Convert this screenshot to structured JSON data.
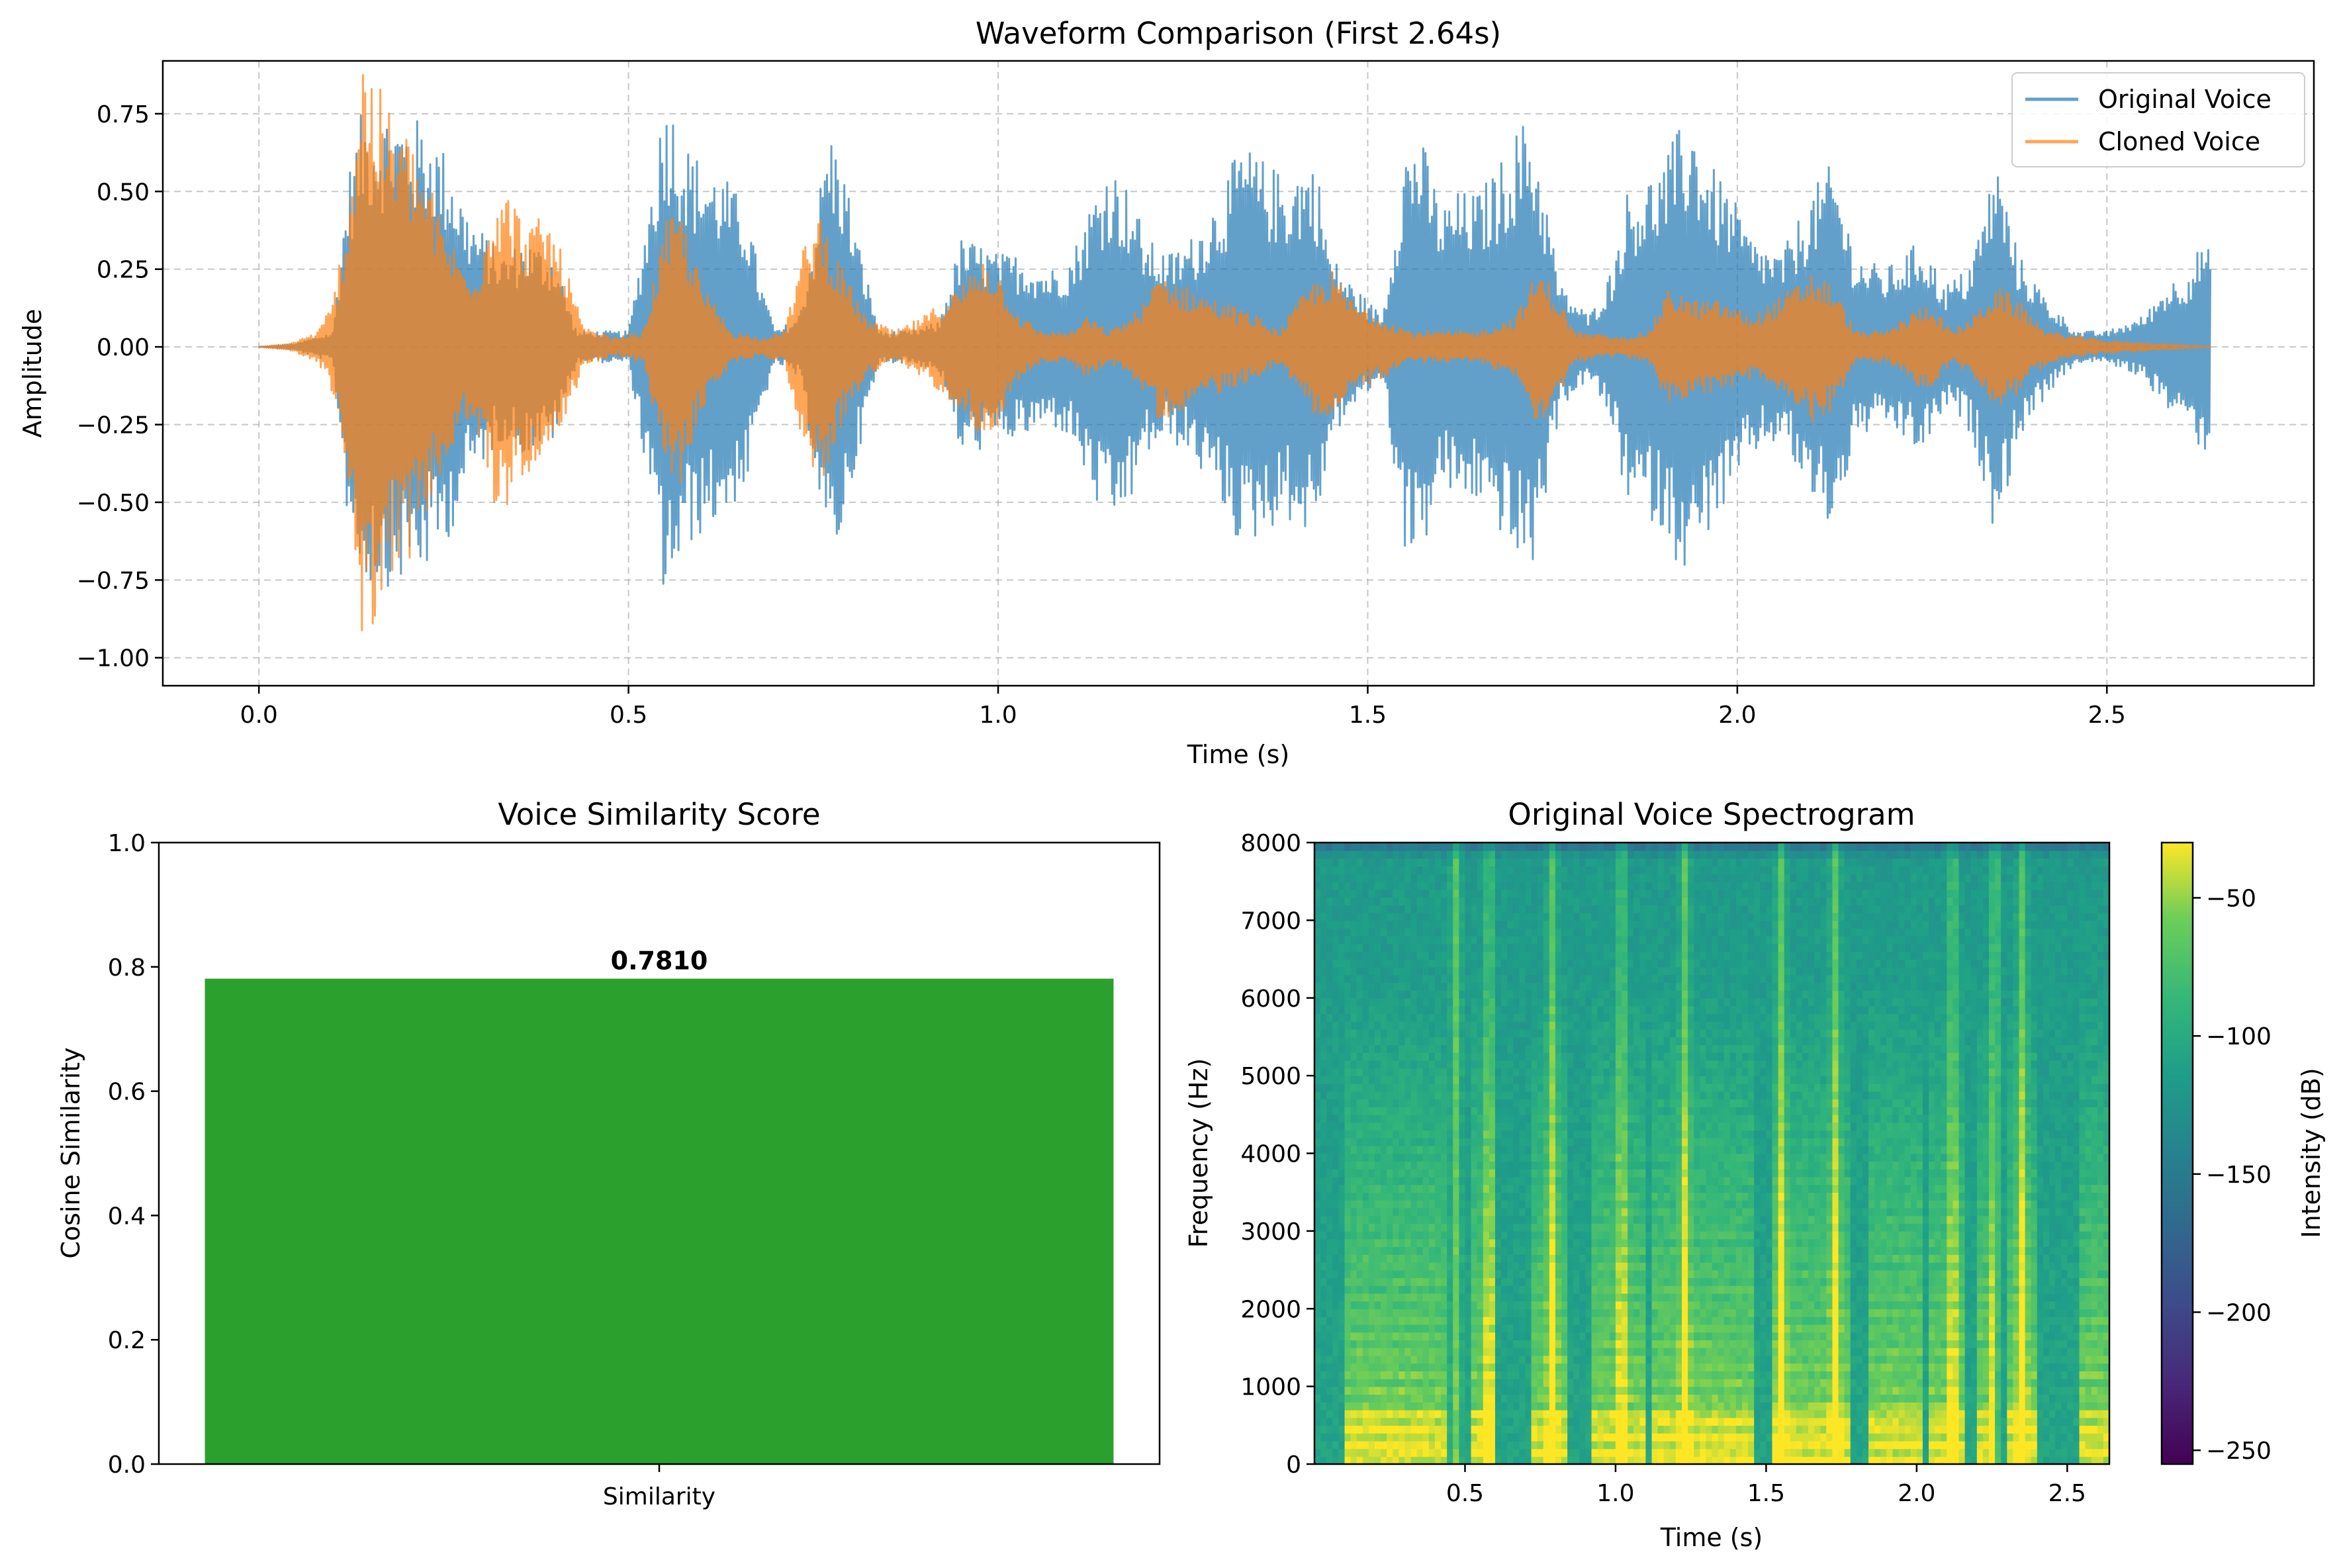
{
  "chart_data": [
    {
      "type": "line",
      "title": "Waveform Comparison (First 2.64s)",
      "xlabel": "Time (s)",
      "ylabel": "Amplitude",
      "xlim": [
        -0.13,
        2.78
      ],
      "ylim": [
        -1.09,
        0.92
      ],
      "xticks": [
        "0.0",
        "0.5",
        "1.0",
        "1.5",
        "2.0",
        "2.5"
      ],
      "yticks": [
        "0.75",
        "0.50",
        "0.25",
        "0.00",
        "−0.25",
        "−0.50",
        "−0.75",
        "−1.00"
      ],
      "grid": true,
      "legend_position": "top-right",
      "duration_s": 2.64,
      "series": [
        {
          "name": "Original Voice",
          "color": "#1f77b4",
          "envelope": [
            [
              0.0,
              0.0
            ],
            [
              0.05,
              0.01
            ],
            [
              0.1,
              0.05
            ],
            [
              0.12,
              0.55
            ],
            [
              0.14,
              0.77
            ],
            [
              0.18,
              0.77
            ],
            [
              0.2,
              0.75
            ],
            [
              0.23,
              0.72
            ],
            [
              0.26,
              0.6
            ],
            [
              0.28,
              0.45
            ],
            [
              0.3,
              0.38
            ],
            [
              0.33,
              0.3
            ],
            [
              0.36,
              0.35
            ],
            [
              0.4,
              0.3
            ],
            [
              0.43,
              0.05
            ],
            [
              0.47,
              0.05
            ],
            [
              0.5,
              0.05
            ],
            [
              0.52,
              0.35
            ],
            [
              0.55,
              0.84
            ],
            [
              0.58,
              0.65
            ],
            [
              0.6,
              0.6
            ],
            [
              0.63,
              0.55
            ],
            [
              0.66,
              0.45
            ],
            [
              0.68,
              0.2
            ],
            [
              0.7,
              0.05
            ],
            [
              0.73,
              0.1
            ],
            [
              0.75,
              0.35
            ],
            [
              0.77,
              0.72
            ],
            [
              0.79,
              0.6
            ],
            [
              0.81,
              0.35
            ],
            [
              0.84,
              0.05
            ],
            [
              0.88,
              0.05
            ],
            [
              0.92,
              0.08
            ],
            [
              0.95,
              0.35
            ],
            [
              0.98,
              0.33
            ],
            [
              1.0,
              0.3
            ],
            [
              1.03,
              0.3
            ],
            [
              1.07,
              0.25
            ],
            [
              1.1,
              0.3
            ],
            [
              1.13,
              0.5
            ],
            [
              1.15,
              0.6
            ],
            [
              1.18,
              0.5
            ],
            [
              1.2,
              0.35
            ],
            [
              1.23,
              0.3
            ],
            [
              1.26,
              0.35
            ],
            [
              1.3,
              0.5
            ],
            [
              1.33,
              0.66
            ],
            [
              1.36,
              0.6
            ],
            [
              1.39,
              0.55
            ],
            [
              1.41,
              0.6
            ],
            [
              1.43,
              0.6
            ],
            [
              1.45,
              0.3
            ],
            [
              1.48,
              0.2
            ],
            [
              1.52,
              0.1
            ],
            [
              1.55,
              0.65
            ],
            [
              1.57,
              0.7
            ],
            [
              1.6,
              0.45
            ],
            [
              1.62,
              0.5
            ],
            [
              1.65,
              0.5
            ],
            [
              1.68,
              0.6
            ],
            [
              1.7,
              0.7
            ],
            [
              1.72,
              0.75
            ],
            [
              1.74,
              0.5
            ],
            [
              1.76,
              0.2
            ],
            [
              1.8,
              0.1
            ],
            [
              1.83,
              0.25
            ],
            [
              1.85,
              0.5
            ],
            [
              1.88,
              0.55
            ],
            [
              1.9,
              0.6
            ],
            [
              1.92,
              0.7
            ],
            [
              1.94,
              0.74
            ],
            [
              1.96,
              0.6
            ],
            [
              1.99,
              0.5
            ],
            [
              2.02,
              0.35
            ],
            [
              2.06,
              0.3
            ],
            [
              2.1,
              0.5
            ],
            [
              2.13,
              0.6
            ],
            [
              2.16,
              0.3
            ],
            [
              2.2,
              0.25
            ],
            [
              2.25,
              0.35
            ],
            [
              2.28,
              0.2
            ],
            [
              2.31,
              0.25
            ],
            [
              2.33,
              0.4
            ],
            [
              2.35,
              0.62
            ],
            [
              2.38,
              0.3
            ],
            [
              2.42,
              0.15
            ],
            [
              2.46,
              0.05
            ],
            [
              2.5,
              0.05
            ],
            [
              2.55,
              0.1
            ],
            [
              2.58,
              0.2
            ],
            [
              2.61,
              0.25
            ],
            [
              2.63,
              0.35
            ],
            [
              2.64,
              0.3
            ]
          ]
        },
        {
          "name": "Cloned Voice",
          "color": "#ff7f0e",
          "envelope": [
            [
              0.0,
              0.0
            ],
            [
              0.04,
              0.01
            ],
            [
              0.08,
              0.05
            ],
            [
              0.1,
              0.15
            ],
            [
              0.12,
              0.45
            ],
            [
              0.14,
              1.0
            ],
            [
              0.16,
              0.85
            ],
            [
              0.18,
              0.75
            ],
            [
              0.2,
              0.7
            ],
            [
              0.22,
              0.6
            ],
            [
              0.25,
              0.4
            ],
            [
              0.28,
              0.25
            ],
            [
              0.3,
              0.3
            ],
            [
              0.32,
              0.55
            ],
            [
              0.34,
              0.5
            ],
            [
              0.36,
              0.4
            ],
            [
              0.39,
              0.42
            ],
            [
              0.41,
              0.3
            ],
            [
              0.44,
              0.06
            ],
            [
              0.48,
              0.03
            ],
            [
              0.52,
              0.05
            ],
            [
              0.55,
              0.4
            ],
            [
              0.57,
              0.45
            ],
            [
              0.6,
              0.2
            ],
            [
              0.64,
              0.05
            ],
            [
              0.68,
              0.03
            ],
            [
              0.71,
              0.05
            ],
            [
              0.74,
              0.35
            ],
            [
              0.76,
              0.45
            ],
            [
              0.78,
              0.3
            ],
            [
              0.82,
              0.1
            ],
            [
              0.86,
              0.05
            ],
            [
              0.9,
              0.1
            ],
            [
              0.95,
              0.2
            ],
            [
              0.98,
              0.3
            ],
            [
              1.0,
              0.25
            ],
            [
              1.03,
              0.1
            ],
            [
              1.06,
              0.05
            ],
            [
              1.1,
              0.05
            ],
            [
              1.12,
              0.1
            ],
            [
              1.15,
              0.05
            ],
            [
              1.18,
              0.1
            ],
            [
              1.2,
              0.15
            ],
            [
              1.22,
              0.25
            ],
            [
              1.25,
              0.2
            ],
            [
              1.3,
              0.15
            ],
            [
              1.35,
              0.1
            ],
            [
              1.38,
              0.05
            ],
            [
              1.42,
              0.2
            ],
            [
              1.45,
              0.25
            ],
            [
              1.48,
              0.15
            ],
            [
              1.52,
              0.1
            ],
            [
              1.56,
              0.05
            ],
            [
              1.6,
              0.05
            ],
            [
              1.65,
              0.05
            ],
            [
              1.7,
              0.1
            ],
            [
              1.73,
              0.25
            ],
            [
              1.75,
              0.2
            ],
            [
              1.78,
              0.05
            ],
            [
              1.84,
              0.03
            ],
            [
              1.88,
              0.05
            ],
            [
              1.91,
              0.2
            ],
            [
              1.94,
              0.15
            ],
            [
              1.98,
              0.15
            ],
            [
              2.02,
              0.1
            ],
            [
              2.05,
              0.15
            ],
            [
              2.08,
              0.2
            ],
            [
              2.1,
              0.25
            ],
            [
              2.13,
              0.2
            ],
            [
              2.16,
              0.05
            ],
            [
              2.2,
              0.05
            ],
            [
              2.23,
              0.1
            ],
            [
              2.26,
              0.15
            ],
            [
              2.29,
              0.05
            ],
            [
              2.32,
              0.1
            ],
            [
              2.35,
              0.2
            ],
            [
              2.38,
              0.15
            ],
            [
              2.42,
              0.05
            ],
            [
              2.5,
              0.02
            ],
            [
              2.64,
              0.0
            ]
          ]
        }
      ]
    },
    {
      "type": "bar",
      "title": "Voice Similarity Score",
      "categories": [
        "Similarity"
      ],
      "values": [
        0.781
      ],
      "data_labels": [
        "0.7810"
      ],
      "ylabel": "Cosine Similarity",
      "xlabel": "",
      "ylim": [
        0.0,
        1.0
      ],
      "yticks": [
        "0.0",
        "0.2",
        "0.4",
        "0.6",
        "0.8",
        "1.0"
      ],
      "bar_color": "#2ca02c"
    },
    {
      "type": "heatmap",
      "title": "Original Voice Spectrogram",
      "xlabel": "Time (s)",
      "ylabel": "Frequency (Hz)",
      "xlim": [
        0.0,
        2.64
      ],
      "ylim": [
        0,
        8000
      ],
      "xticks": [
        "0.5",
        "1.0",
        "1.5",
        "2.0",
        "2.5"
      ],
      "yticks": [
        "0",
        "1000",
        "2000",
        "3000",
        "4000",
        "5000",
        "6000",
        "7000",
        "8000"
      ],
      "colormap": "viridis",
      "colorbar": {
        "label": "Intensity (dB)",
        "range": [
          -255,
          -30
        ],
        "ticks": [
          "−50",
          "−100",
          "−150",
          "−200",
          "−250"
        ]
      },
      "voiced_regions_s": [
        [
          0.1,
          0.44
        ],
        [
          0.52,
          0.6
        ],
        [
          0.72,
          0.84
        ],
        [
          0.92,
          1.1
        ],
        [
          1.12,
          1.45
        ],
        [
          1.52,
          1.78
        ],
        [
          1.84,
          2.02
        ],
        [
          2.05,
          2.16
        ],
        [
          2.2,
          2.26
        ],
        [
          2.3,
          2.4
        ],
        [
          2.55,
          2.64
        ]
      ],
      "onset_bands_s": [
        0.47,
        0.58,
        0.79,
        1.02,
        1.23,
        1.55,
        1.73,
        2.12,
        2.26,
        2.35
      ]
    }
  ]
}
